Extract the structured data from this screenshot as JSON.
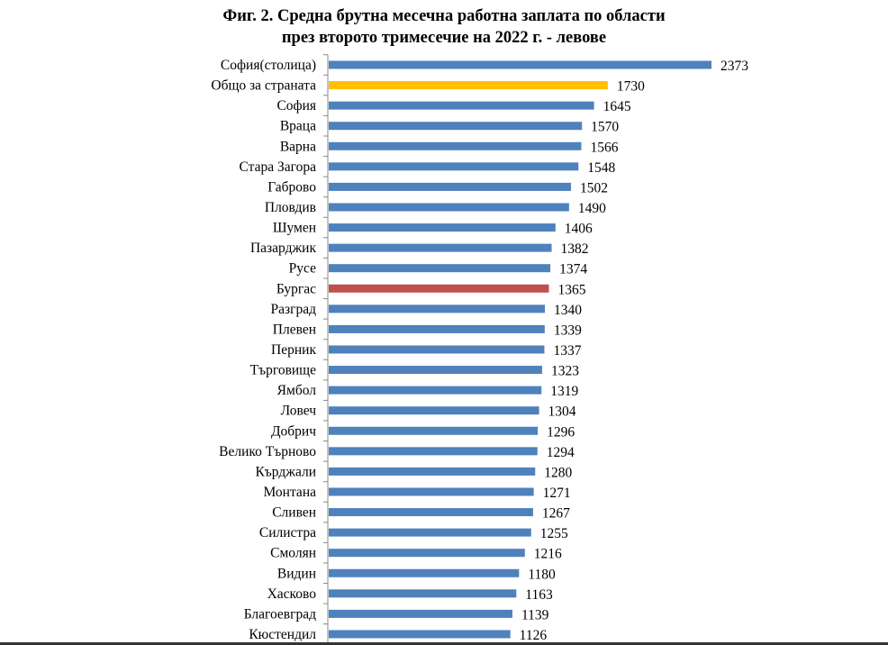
{
  "chart_data": {
    "type": "bar",
    "orientation": "horizontal",
    "title": [
      "Фиг. 2. Средна брутна месечна работна заплата по области",
      "през второто тримесечие на 2022 г. - левове"
    ],
    "categories": [
      "София(столица)",
      "Общо за страната",
      "София",
      "Враца",
      "Варна",
      "Стара Загора",
      "Габрово",
      "Пловдив",
      "Шумен",
      "Пазарджик",
      "Русе",
      "Бургас",
      "Разград",
      "Плевен",
      "Перник",
      "Търговище",
      "Ямбол",
      "Ловеч",
      "Добрич",
      "Велико Търново",
      "Кърджали",
      "Монтана",
      "Сливен",
      "Силистра",
      "Смолян",
      "Видин",
      "Хасково",
      "Благоевград",
      "Кюстендил"
    ],
    "values": [
      2373,
      1730,
      1645,
      1570,
      1566,
      1548,
      1502,
      1490,
      1406,
      1382,
      1374,
      1365,
      1340,
      1339,
      1337,
      1323,
      1319,
      1304,
      1296,
      1294,
      1280,
      1271,
      1267,
      1255,
      1216,
      1180,
      1163,
      1139,
      1126
    ],
    "xlim": [
      0,
      2373
    ],
    "grid": false,
    "legend": "none",
    "data_labels": true,
    "colors": {
      "default": "#4f81bd",
      "highlight_total": "#ffc000",
      "highlight_burgas": "#c0504d"
    },
    "highlights": {
      "Общо за страната": "highlight_total",
      "Бургас": "highlight_burgas"
    }
  }
}
